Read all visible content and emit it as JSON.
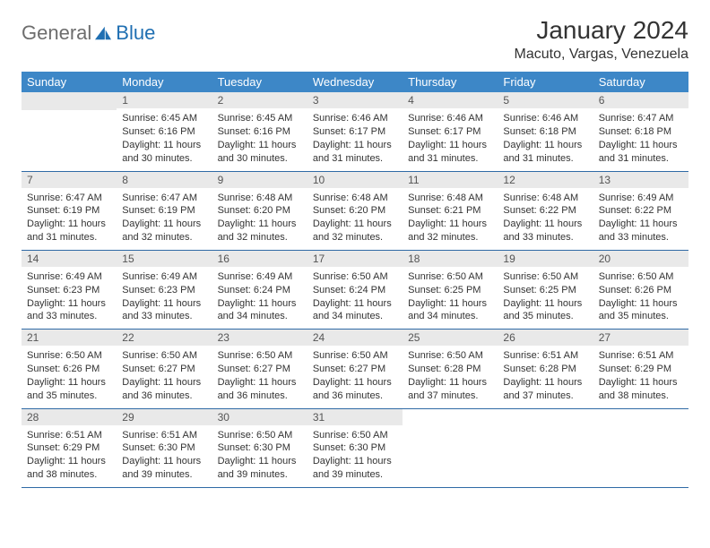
{
  "logo": {
    "general": "General",
    "blue": "Blue"
  },
  "title": "January 2024",
  "location": "Macuto, Vargas, Venezuela",
  "colors": {
    "header_bg": "#3d87c7",
    "header_text": "#ffffff",
    "daynum_bg": "#e9e9e9",
    "border": "#2f6aa5",
    "logo_gray": "#6d6d6d",
    "logo_blue": "#1f6fb2"
  },
  "weekdays": [
    "Sunday",
    "Monday",
    "Tuesday",
    "Wednesday",
    "Thursday",
    "Friday",
    "Saturday"
  ],
  "weeks": [
    [
      null,
      {
        "n": "1",
        "sr": "6:45 AM",
        "ss": "6:16 PM",
        "dl": "11 hours and 30 minutes."
      },
      {
        "n": "2",
        "sr": "6:45 AM",
        "ss": "6:16 PM",
        "dl": "11 hours and 30 minutes."
      },
      {
        "n": "3",
        "sr": "6:46 AM",
        "ss": "6:17 PM",
        "dl": "11 hours and 31 minutes."
      },
      {
        "n": "4",
        "sr": "6:46 AM",
        "ss": "6:17 PM",
        "dl": "11 hours and 31 minutes."
      },
      {
        "n": "5",
        "sr": "6:46 AM",
        "ss": "6:18 PM",
        "dl": "11 hours and 31 minutes."
      },
      {
        "n": "6",
        "sr": "6:47 AM",
        "ss": "6:18 PM",
        "dl": "11 hours and 31 minutes."
      }
    ],
    [
      {
        "n": "7",
        "sr": "6:47 AM",
        "ss": "6:19 PM",
        "dl": "11 hours and 31 minutes."
      },
      {
        "n": "8",
        "sr": "6:47 AM",
        "ss": "6:19 PM",
        "dl": "11 hours and 32 minutes."
      },
      {
        "n": "9",
        "sr": "6:48 AM",
        "ss": "6:20 PM",
        "dl": "11 hours and 32 minutes."
      },
      {
        "n": "10",
        "sr": "6:48 AM",
        "ss": "6:20 PM",
        "dl": "11 hours and 32 minutes."
      },
      {
        "n": "11",
        "sr": "6:48 AM",
        "ss": "6:21 PM",
        "dl": "11 hours and 32 minutes."
      },
      {
        "n": "12",
        "sr": "6:48 AM",
        "ss": "6:22 PM",
        "dl": "11 hours and 33 minutes."
      },
      {
        "n": "13",
        "sr": "6:49 AM",
        "ss": "6:22 PM",
        "dl": "11 hours and 33 minutes."
      }
    ],
    [
      {
        "n": "14",
        "sr": "6:49 AM",
        "ss": "6:23 PM",
        "dl": "11 hours and 33 minutes."
      },
      {
        "n": "15",
        "sr": "6:49 AM",
        "ss": "6:23 PM",
        "dl": "11 hours and 33 minutes."
      },
      {
        "n": "16",
        "sr": "6:49 AM",
        "ss": "6:24 PM",
        "dl": "11 hours and 34 minutes."
      },
      {
        "n": "17",
        "sr": "6:50 AM",
        "ss": "6:24 PM",
        "dl": "11 hours and 34 minutes."
      },
      {
        "n": "18",
        "sr": "6:50 AM",
        "ss": "6:25 PM",
        "dl": "11 hours and 34 minutes."
      },
      {
        "n": "19",
        "sr": "6:50 AM",
        "ss": "6:25 PM",
        "dl": "11 hours and 35 minutes."
      },
      {
        "n": "20",
        "sr": "6:50 AM",
        "ss": "6:26 PM",
        "dl": "11 hours and 35 minutes."
      }
    ],
    [
      {
        "n": "21",
        "sr": "6:50 AM",
        "ss": "6:26 PM",
        "dl": "11 hours and 35 minutes."
      },
      {
        "n": "22",
        "sr": "6:50 AM",
        "ss": "6:27 PM",
        "dl": "11 hours and 36 minutes."
      },
      {
        "n": "23",
        "sr": "6:50 AM",
        "ss": "6:27 PM",
        "dl": "11 hours and 36 minutes."
      },
      {
        "n": "24",
        "sr": "6:50 AM",
        "ss": "6:27 PM",
        "dl": "11 hours and 36 minutes."
      },
      {
        "n": "25",
        "sr": "6:50 AM",
        "ss": "6:28 PM",
        "dl": "11 hours and 37 minutes."
      },
      {
        "n": "26",
        "sr": "6:51 AM",
        "ss": "6:28 PM",
        "dl": "11 hours and 37 minutes."
      },
      {
        "n": "27",
        "sr": "6:51 AM",
        "ss": "6:29 PM",
        "dl": "11 hours and 38 minutes."
      }
    ],
    [
      {
        "n": "28",
        "sr": "6:51 AM",
        "ss": "6:29 PM",
        "dl": "11 hours and 38 minutes."
      },
      {
        "n": "29",
        "sr": "6:51 AM",
        "ss": "6:30 PM",
        "dl": "11 hours and 39 minutes."
      },
      {
        "n": "30",
        "sr": "6:50 AM",
        "ss": "6:30 PM",
        "dl": "11 hours and 39 minutes."
      },
      {
        "n": "31",
        "sr": "6:50 AM",
        "ss": "6:30 PM",
        "dl": "11 hours and 39 minutes."
      },
      null,
      null,
      null
    ]
  ],
  "labels": {
    "sunrise": "Sunrise:",
    "sunset": "Sunset:",
    "daylight": "Daylight:"
  }
}
